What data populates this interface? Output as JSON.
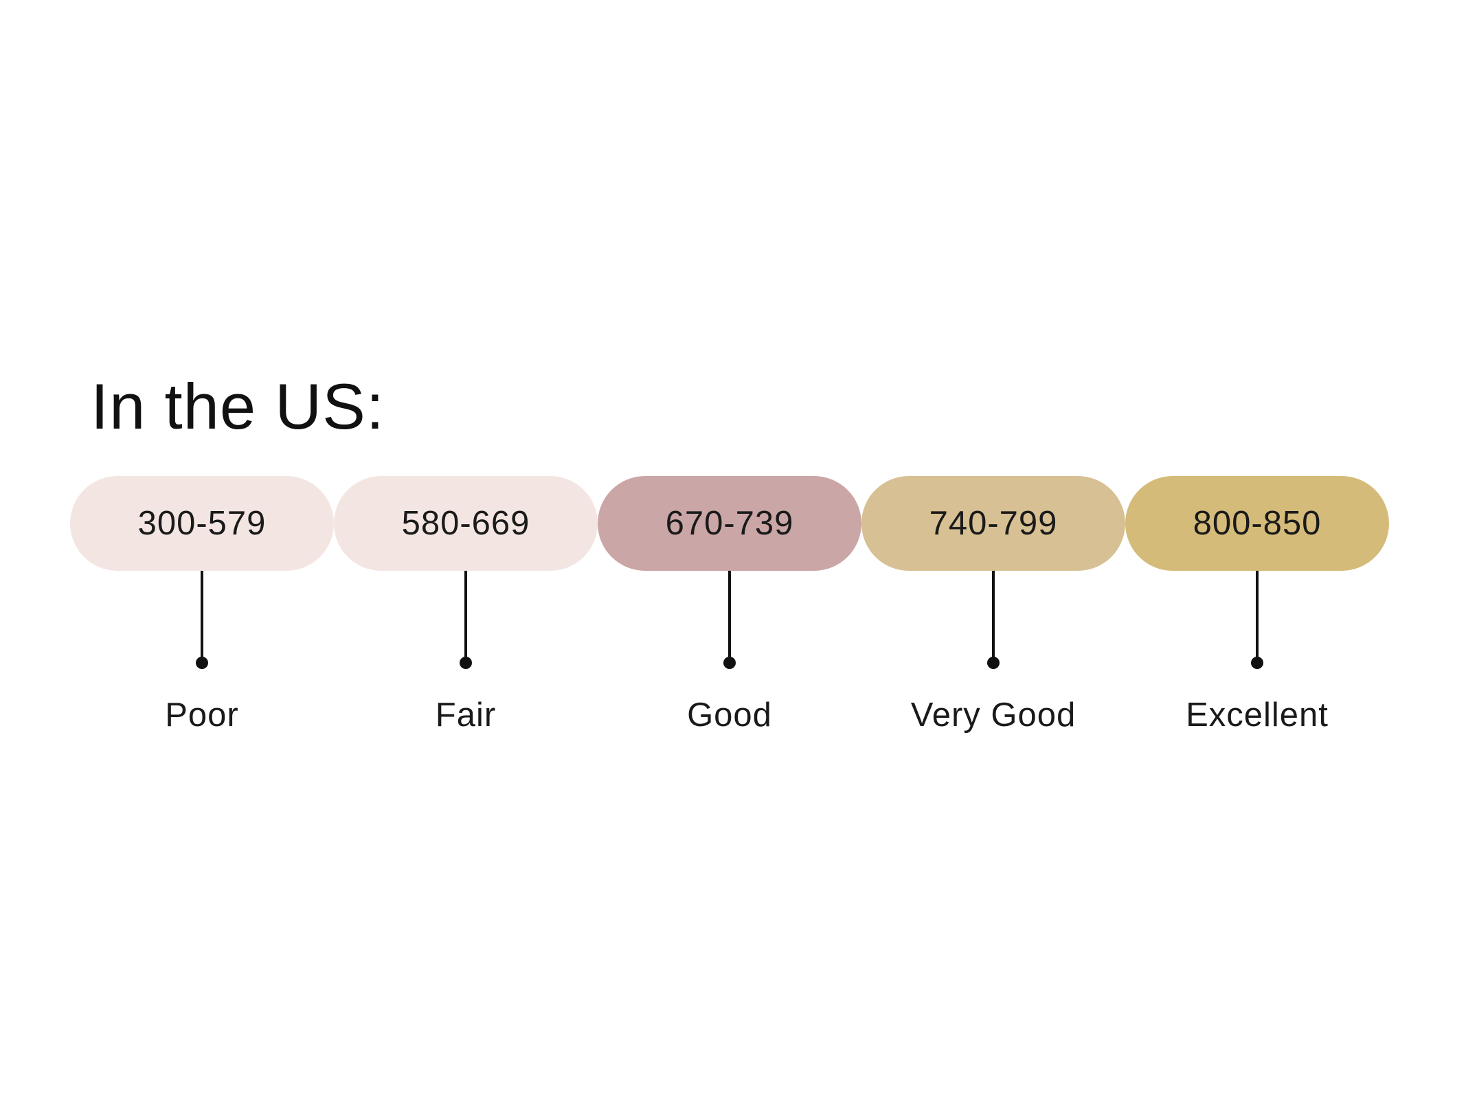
{
  "title": "In the US:",
  "bands": [
    {
      "range": "300-579",
      "rating": "Poor",
      "color": "#f3e6e2"
    },
    {
      "range": "580-669",
      "rating": "Fair",
      "color": "#f3e6e2"
    },
    {
      "range": "670-739",
      "rating": "Good",
      "color": "#cba6a7"
    },
    {
      "range": "740-799",
      "rating": "Very Good",
      "color": "#d7c093"
    },
    {
      "range": "800-850",
      "rating": "Excellent",
      "color": "#d5bb7a"
    }
  ]
}
